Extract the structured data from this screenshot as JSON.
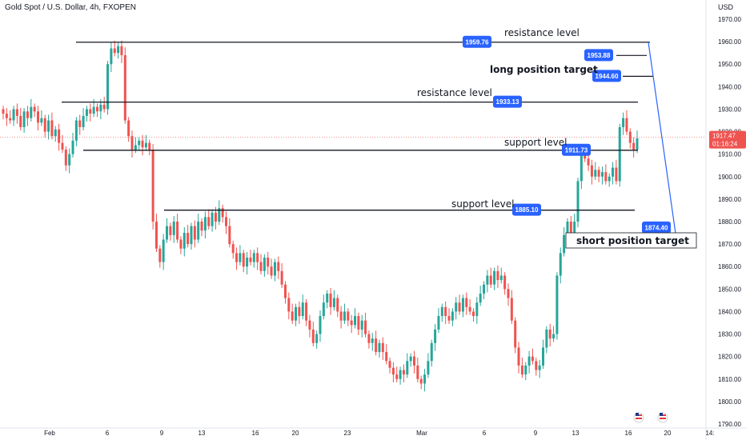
{
  "header": {
    "title": "Gold Spot / U.S. Dollar, 4h, FXOPEN",
    "currency": "USD"
  },
  "price_axis": {
    "ticks": [
      "1970.00",
      "1960.00",
      "1950.00",
      "1940.00",
      "1930.00",
      "1920.00",
      "1910.00",
      "1900.00",
      "1890.00",
      "1880.00",
      "1870.00",
      "1860.00",
      "1850.00",
      "1840.00",
      "1830.00",
      "1820.00",
      "1810.00",
      "1800.00",
      "1790.00"
    ],
    "last_price": "1917.47",
    "countdown": "01:16:24"
  },
  "time_axis": {
    "ticks": [
      "Feb",
      "6",
      "9",
      "13",
      "16",
      "20",
      "23",
      "Mar",
      "6",
      "9",
      "13",
      "16",
      "20",
      "14:"
    ]
  },
  "annotations": {
    "resistance_top": "resistance level",
    "resistance_mid": "resistance level",
    "support_mid": "support level",
    "support_low": "support level",
    "long_target": "long position target",
    "short_target": "short position target"
  },
  "price_badges": [
    "1959.76",
    "1953.88",
    "1944.60",
    "1933.13",
    "1911.73",
    "1885.10",
    "1874.40"
  ],
  "colors": {
    "up": "#26a69a",
    "down": "#ef5350",
    "badge": "#2962ff",
    "line": "#131722",
    "arrow": "#2962ff"
  },
  "chart_data": {
    "type": "candlestick",
    "title": "Gold Spot / U.S. Dollar, 4h, FXOPEN",
    "ylim": [
      1790,
      1970
    ],
    "y_ticks": [
      1970,
      1960,
      1950,
      1940,
      1930,
      1920,
      1910,
      1900,
      1890,
      1880,
      1870,
      1860,
      1850,
      1840,
      1830,
      1820,
      1810,
      1800,
      1790
    ],
    "x_tick_labels": [
      "Feb",
      "6",
      "9",
      "13",
      "16",
      "20",
      "23",
      "Mar",
      "6",
      "9",
      "13",
      "16",
      "20",
      "14:"
    ],
    "levels": [
      {
        "label": "resistance level",
        "value": 1959.76
      },
      {
        "label": "resistance level",
        "value": 1933.13
      },
      {
        "label": "support level",
        "value": 1911.73
      },
      {
        "label": "support level",
        "value": 1885.1
      }
    ],
    "targets": [
      {
        "label": "long position target",
        "values": [
          1953.88,
          1944.6
        ]
      },
      {
        "label": "short position target",
        "value": 1874.4
      }
    ],
    "last_price": 1917.47,
    "closes": [
      1928,
      1926,
      1925,
      1930,
      1927,
      1922,
      1929,
      1926,
      1931,
      1929,
      1924,
      1926,
      1920,
      1925,
      1918,
      1921,
      1915,
      1912,
      1905,
      1910,
      1916,
      1925,
      1922,
      1927,
      1930,
      1928,
      1931,
      1929,
      1932,
      1930,
      1950,
      1957,
      1955,
      1958,
      1954,
      1925,
      1918,
      1912,
      1914,
      1916,
      1913,
      1915,
      1912,
      1880,
      1868,
      1862,
      1872,
      1878,
      1874,
      1880,
      1872,
      1868,
      1875,
      1870,
      1878,
      1872,
      1880,
      1876,
      1882,
      1878,
      1884,
      1880,
      1886,
      1882,
      1878,
      1870,
      1866,
      1862,
      1866,
      1860,
      1864,
      1862,
      1866,
      1862,
      1858,
      1864,
      1860,
      1856,
      1862,
      1858,
      1852,
      1846,
      1840,
      1836,
      1842,
      1838,
      1844,
      1836,
      1832,
      1826,
      1830,
      1838,
      1844,
      1848,
      1842,
      1846,
      1840,
      1836,
      1840,
      1836,
      1834,
      1838,
      1832,
      1836,
      1830,
      1826,
      1828,
      1822,
      1826,
      1822,
      1818,
      1815,
      1812,
      1810,
      1814,
      1812,
      1818,
      1820,
      1816,
      1810,
      1808,
      1812,
      1818,
      1826,
      1832,
      1838,
      1842,
      1838,
      1836,
      1840,
      1844,
      1840,
      1846,
      1842,
      1840,
      1838,
      1844,
      1848,
      1852,
      1856,
      1852,
      1858,
      1854,
      1856,
      1850,
      1846,
      1836,
      1824,
      1816,
      1812,
      1816,
      1820,
      1818,
      1814,
      1816,
      1824,
      1832,
      1828,
      1830,
      1856,
      1866,
      1874,
      1880,
      1872,
      1880,
      1898,
      1911,
      1908,
      1905,
      1900,
      1903,
      1900,
      1902,
      1898,
      1900,
      1904,
      1898,
      1922,
      1926,
      1920,
      1915,
      1912,
      1917
    ]
  }
}
